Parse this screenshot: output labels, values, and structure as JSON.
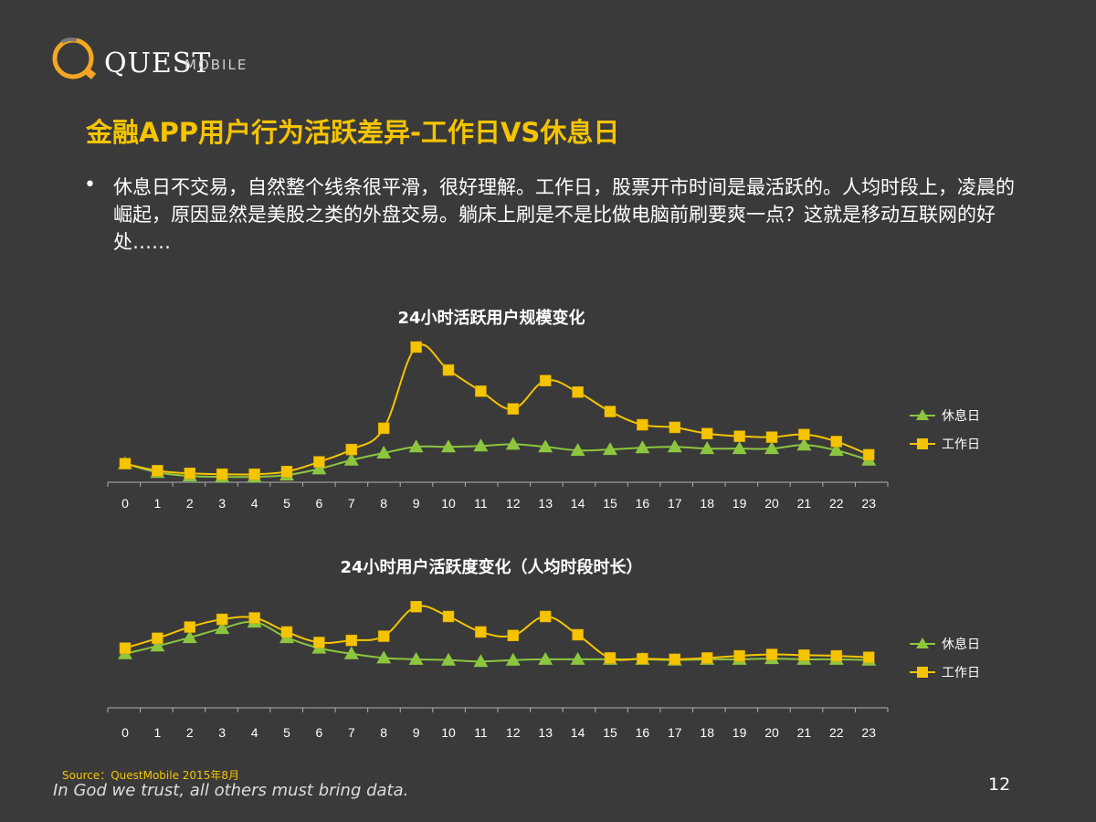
{
  "header": {
    "logo_text": "QUEST",
    "logo_sub": "MOBILE",
    "title": "金融APP用户行为活跃差异-工作日VS休息日",
    "bullet": "休息日不交易，自然整个线条很平滑，很好理解。工作日，股票开市时间是最活跃的。人均时段上，凌晨的崛起，原因显然是美股之类的外盘交易。躺床上刷是不是比做电脑前刷要爽一点？这就是移动互联网的好处……"
  },
  "colors": {
    "background": "#3a3a3a",
    "title": "#f5c400",
    "rest_day": "#8cc63f",
    "work_day": "#f5c400",
    "axis": "#b0b0b0"
  },
  "chart_data": [
    {
      "type": "line",
      "title": "24小时活跃用户规模变化",
      "xlabel": "",
      "ylabel": "",
      "categories": [
        "0",
        "1",
        "2",
        "3",
        "4",
        "5",
        "6",
        "7",
        "8",
        "9",
        "10",
        "11",
        "12",
        "13",
        "14",
        "15",
        "16",
        "17",
        "18",
        "19",
        "20",
        "21",
        "22",
        "23"
      ],
      "ylim": [
        0,
        150
      ],
      "grid": false,
      "legend": "right",
      "series": [
        {
          "name": "休息日",
          "marker": "triangle",
          "values": [
            18,
            8,
            4,
            3,
            3,
            5,
            12,
            22,
            30,
            37,
            37,
            38,
            40,
            37,
            33,
            34,
            36,
            37,
            35,
            35,
            35,
            39,
            33,
            22
          ]
        },
        {
          "name": "工作日",
          "marker": "square",
          "values": [
            18,
            10,
            7,
            6,
            6,
            9,
            20,
            34,
            58,
            150,
            124,
            100,
            80,
            112,
            99,
            77,
            62,
            59,
            52,
            49,
            48,
            51,
            43,
            28
          ]
        }
      ]
    },
    {
      "type": "line",
      "title": "24小时用户活跃度变化（人均时段时长）",
      "xlabel": "",
      "ylabel": "",
      "categories": [
        "0",
        "1",
        "2",
        "3",
        "4",
        "5",
        "6",
        "7",
        "8",
        "9",
        "10",
        "11",
        "12",
        "13",
        "14",
        "15",
        "16",
        "17",
        "18",
        "19",
        "20",
        "21",
        "22",
        "23"
      ],
      "ylim": [
        0,
        130
      ],
      "grid": false,
      "legend": "right",
      "series": [
        {
          "name": "休息日",
          "marker": "triangle",
          "values": [
            51,
            62,
            74,
            87,
            96,
            74,
            59,
            51,
            45,
            43,
            42,
            40,
            42,
            43,
            43,
            43,
            43,
            42,
            43,
            43,
            44,
            43,
            43,
            42
          ]
        },
        {
          "name": "工作日",
          "marker": "square",
          "values": [
            59,
            73,
            89,
            100,
            102,
            82,
            67,
            70,
            76,
            118,
            104,
            82,
            77,
            104,
            78,
            45,
            44,
            43,
            45,
            48,
            50,
            49,
            48,
            46
          ]
        }
      ]
    }
  ],
  "footer": {
    "source": "Source：QuestMobile   2015年8月",
    "motto": "In God we trust, all others must bring data.",
    "page": "12"
  }
}
